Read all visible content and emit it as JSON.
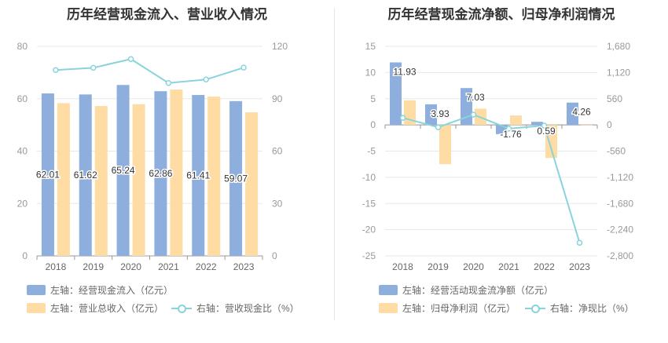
{
  "chart_data": [
    {
      "type": "bar",
      "title": "历年经营现金流入、营业收入情况",
      "categories": [
        "2018",
        "2019",
        "2020",
        "2021",
        "2022",
        "2023"
      ],
      "y_left": {
        "min": 0,
        "max": 80,
        "ticks": [
          "0",
          "20",
          "40",
          "60",
          "80"
        ]
      },
      "y_right": {
        "min": 0,
        "max": 120,
        "ticks": [
          "0",
          "30",
          "60",
          "90",
          "120"
        ]
      },
      "series": [
        {
          "name": "左轴：经营现金流入（亿元）",
          "axis": "left",
          "color": "#8eaedd",
          "values": [
            62.01,
            61.62,
            65.24,
            62.86,
            61.41,
            59.07
          ],
          "labels": [
            "62.01",
            "61.62",
            "65.24",
            "62.86",
            "61.41",
            "59.07"
          ]
        },
        {
          "name": "左轴：营业总收入（亿元）",
          "axis": "left",
          "color": "#fedca4",
          "values": [
            58.3,
            57.2,
            57.9,
            63.5,
            60.8,
            54.8
          ]
        },
        {
          "name": "右轴：营收现金比（%）",
          "axis": "right",
          "type": "line",
          "color": "#88d4dc",
          "values": [
            106.4,
            107.7,
            112.7,
            99.0,
            101.0,
            107.8
          ]
        }
      ],
      "grid": true,
      "legend": "bottom-left"
    },
    {
      "type": "bar",
      "title": "历年经营现金流净额、归母净利润情况",
      "categories": [
        "2018",
        "2019",
        "2020",
        "2021",
        "2022",
        "2023"
      ],
      "y_left": {
        "min": -25,
        "max": 15,
        "ticks": [
          "-25",
          "-20",
          "-15",
          "-10",
          "-5",
          "0",
          "5",
          "10",
          "15"
        ]
      },
      "y_right": {
        "min": -2800,
        "max": 1680,
        "ticks": [
          "-2,800",
          "-2,240",
          "-1,680",
          "-1,120",
          "-560",
          "0",
          "560",
          "1,120",
          "1,680"
        ]
      },
      "series": [
        {
          "name": "左轴：经营活动现金流净额（亿元）",
          "axis": "left",
          "color": "#8eaedd",
          "values": [
            11.93,
            3.93,
            7.03,
            -1.76,
            0.59,
            4.26
          ],
          "labels": [
            "11.93",
            "3.93",
            "7.03",
            "-1.76",
            "0.59",
            "4.26"
          ]
        },
        {
          "name": "左轴：归母净利润（亿元）",
          "axis": "left",
          "color": "#fedca4",
          "values": [
            4.7,
            -7.5,
            3.1,
            1.8,
            -6.3,
            -0.02
          ]
        },
        {
          "name": "右轴：净现比（%）",
          "axis": "right",
          "type": "line",
          "color": "#88d4dc",
          "values": [
            150,
            -50,
            220,
            -80,
            -15,
            -2520
          ]
        }
      ],
      "grid": true,
      "legend": "bottom-left"
    }
  ]
}
